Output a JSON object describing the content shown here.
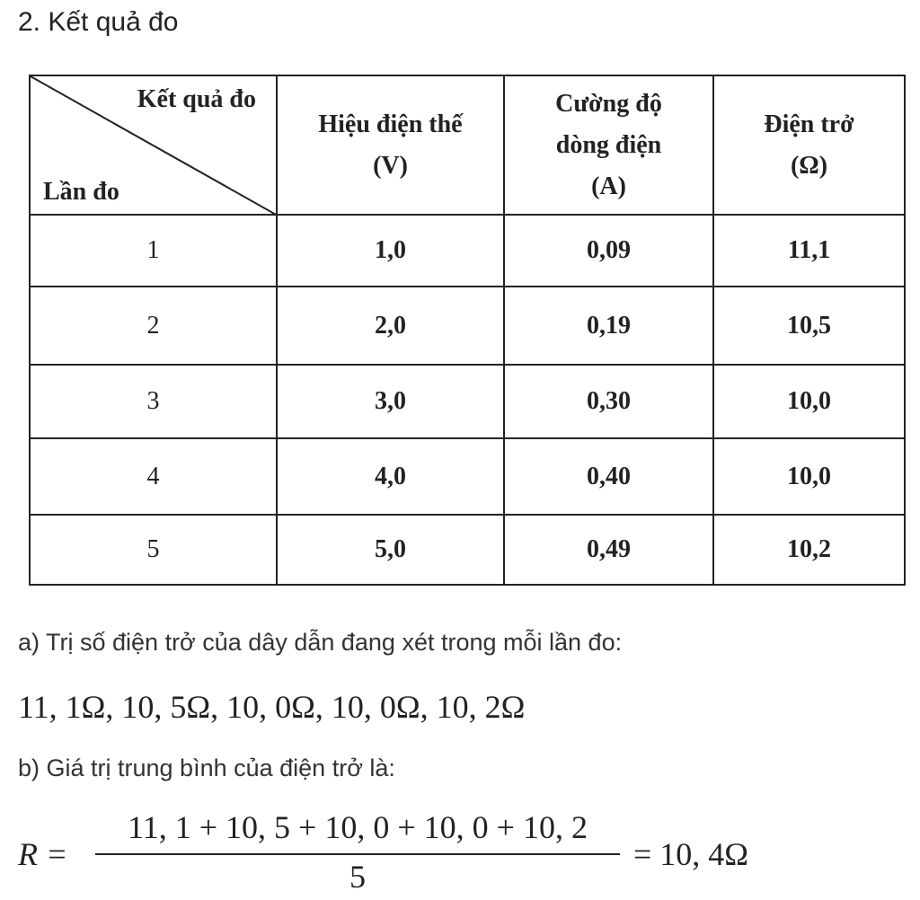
{
  "heading": "2. Kết quả đo",
  "table": {
    "corner_top": "Kết quả đo",
    "corner_bottom": "Lần đo",
    "header": [
      [
        "Hiệu điện thế",
        "(V)"
      ],
      [
        "Cường độ",
        "dòng điện",
        "(A)"
      ],
      [
        "Điện trở",
        "(Ω)"
      ]
    ],
    "rows": [
      [
        "1",
        "1,0",
        "0,09",
        "11,1"
      ],
      [
        "2",
        "2,0",
        "0,19",
        "10,5"
      ],
      [
        "3",
        "3,0",
        "0,30",
        "10,0"
      ],
      [
        "4",
        "4,0",
        "0,40",
        "10,0"
      ],
      [
        "5",
        "5,0",
        "0,49",
        "10,2"
      ]
    ]
  },
  "part_a": {
    "text": "a) Trị số điện trở của dây dẫn đang xét trong mỗi lần đo:",
    "values": "11, 1Ω, 10, 5Ω, 10, 0Ω, 10, 0Ω, 10, 2Ω"
  },
  "part_b": {
    "text": "b) Giá trị trung bình của điện trở là:",
    "lhs": "R =",
    "numerator": "11, 1 + 10, 5 + 10, 0 + 10, 0 + 10, 2",
    "denominator": "5",
    "rhs": "= 10, 4Ω"
  }
}
